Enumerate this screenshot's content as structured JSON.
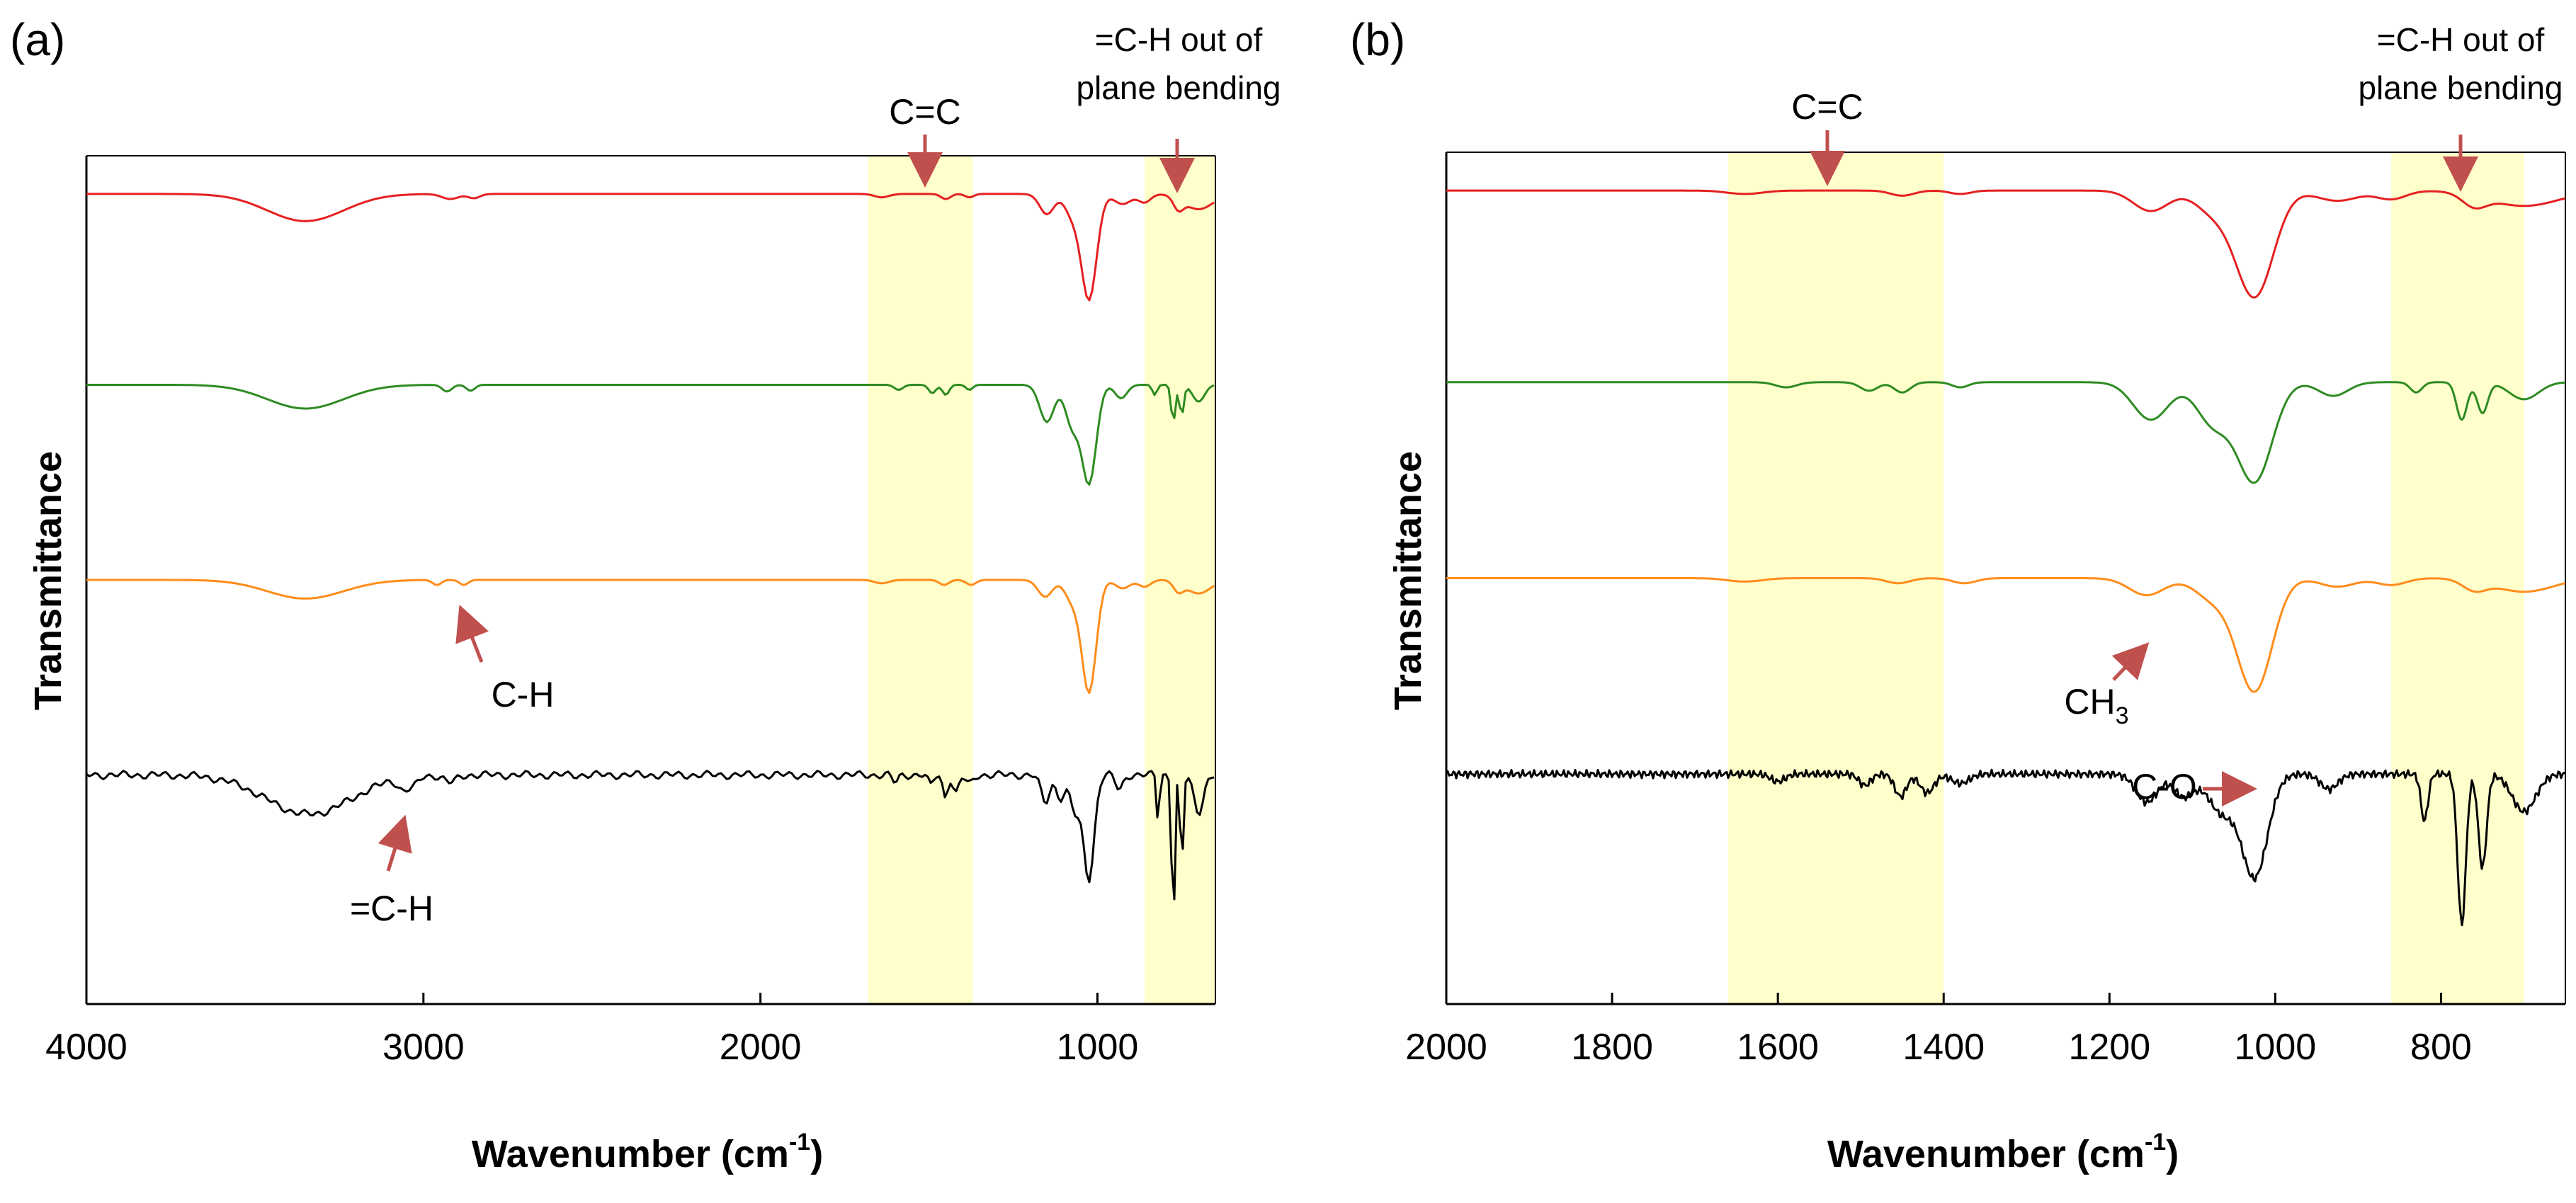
{
  "chart_data": [
    {
      "panel": "(a)",
      "type": "line",
      "xlabel": "Wavenumber (cm",
      "xlabel_sup": "-1",
      "xlabel_close": ")",
      "ylabel": "Transmittance",
      "xlim": [
        4000,
        650
      ],
      "xticks": [
        4000,
        3000,
        2000,
        1000
      ],
      "xtick_labels": [
        "4000",
        "3000",
        "2000",
        "1000"
      ],
      "ylim": [
        0,
        1
      ],
      "highlight_bands": [
        [
          1680,
          1370
        ],
        [
          860,
          650
        ]
      ],
      "series": [
        {
          "name": "red",
          "color": "#e52020",
          "baseline": 0.955
        },
        {
          "name": "green",
          "color": "#2e8b22",
          "baseline": 0.73
        },
        {
          "name": "orange",
          "color": "#ff8c1a",
          "baseline": 0.5
        },
        {
          "name": "black",
          "color": "#000000",
          "baseline": 0.27
        }
      ],
      "annotations": [
        {
          "id": "cc",
          "text": "C=C"
        },
        {
          "id": "oop1",
          "text": "=C-H out of"
        },
        {
          "id": "oop2",
          "text": "plane bending"
        },
        {
          "id": "ch",
          "text": "C-H"
        },
        {
          "id": "ech",
          "text": "=C-H"
        }
      ]
    },
    {
      "panel": "(b)",
      "type": "line",
      "xlabel": "Wavenumber (cm",
      "xlabel_sup": "-1",
      "xlabel_close": ")",
      "ylabel": "Transmittance",
      "xlim": [
        2000,
        650
      ],
      "xticks": [
        2000,
        1800,
        1600,
        1400,
        1200,
        1000,
        800
      ],
      "xtick_labels": [
        "2000",
        "1800",
        "1600",
        "1400",
        "1200",
        "1000",
        "800"
      ],
      "ylim": [
        0,
        1
      ],
      "highlight_bands": [
        [
          1660,
          1400
        ],
        [
          860,
          700
        ]
      ],
      "series": [
        {
          "name": "red",
          "color": "#e52020",
          "baseline": 0.955
        },
        {
          "name": "green",
          "color": "#2e8b22",
          "baseline": 0.73
        },
        {
          "name": "orange",
          "color": "#ff8c1a",
          "baseline": 0.5
        },
        {
          "name": "black",
          "color": "#000000",
          "baseline": 0.27
        }
      ],
      "annotations": [
        {
          "id": "cc",
          "text": "C=C"
        },
        {
          "id": "oop1",
          "text": "=C-H out of"
        },
        {
          "id": "oop2",
          "text": "plane bending"
        },
        {
          "id": "ch3",
          "text": "CH",
          "sub": "3"
        },
        {
          "id": "co",
          "text": "C-O"
        }
      ]
    }
  ],
  "colors": {
    "highlight": "#ffffcc",
    "arrow": "#c0504d",
    "axis": "#000000"
  }
}
